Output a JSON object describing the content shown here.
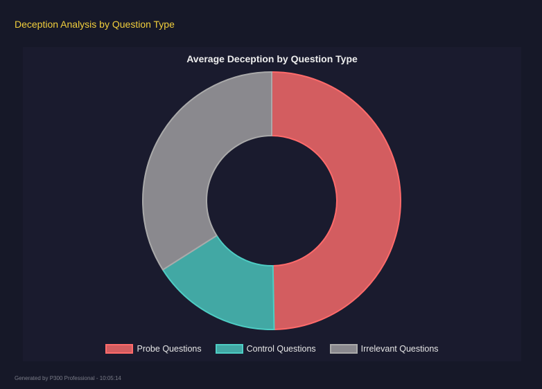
{
  "header": {
    "title": "Deception Analysis by Question Type"
  },
  "chart_data": {
    "type": "pie",
    "variant": "doughnut",
    "title": "Average Deception by Question Type",
    "categories": [
      "Probe Questions",
      "Control Questions",
      "Irrelevant Questions"
    ],
    "values": [
      49.7,
      16.3,
      34.0
    ],
    "fill_colors": [
      "#d35d60",
      "#42a8a4",
      "#8a898e"
    ],
    "border_colors": [
      "#ff6b6b",
      "#4ecdc4",
      "#aaaaaa"
    ],
    "legend_position": "bottom"
  },
  "footer": {
    "text": "Generated by P300 Professional - 10:05:14"
  }
}
